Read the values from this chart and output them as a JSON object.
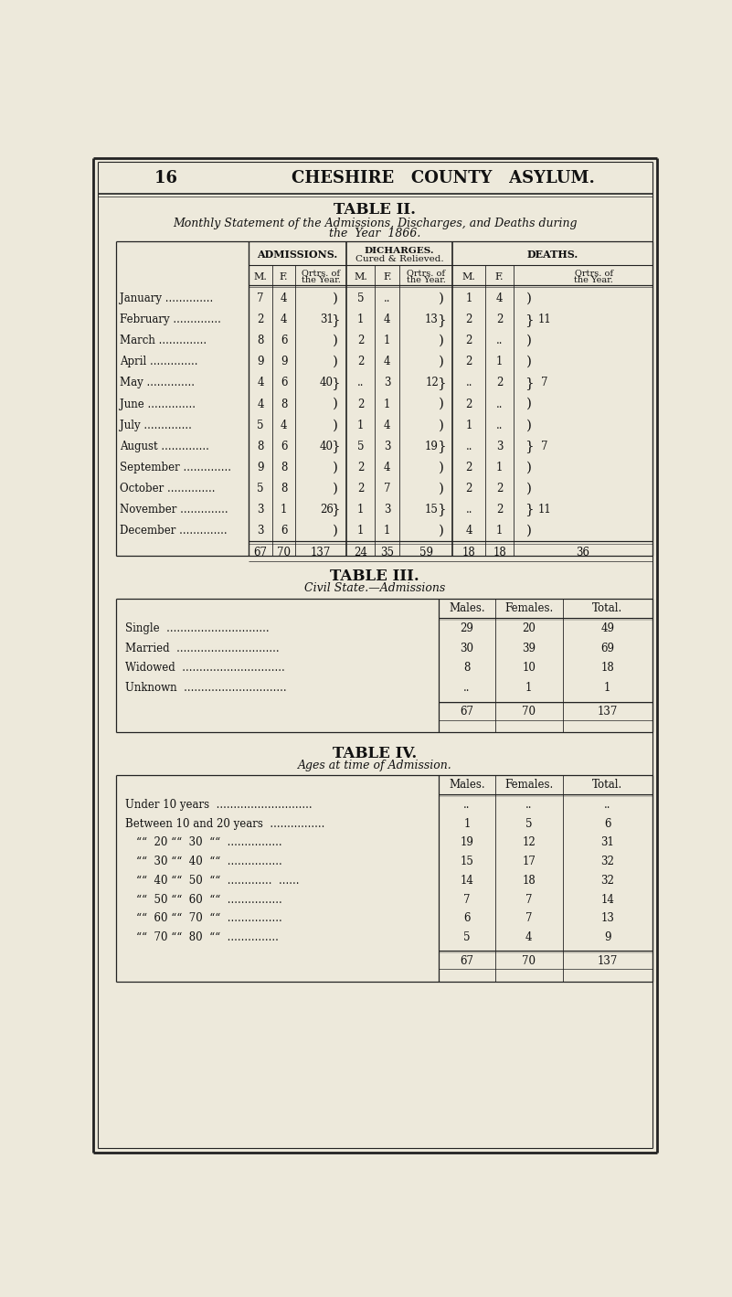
{
  "page_bg": "#ede9db",
  "text_color": "#111111",
  "months": [
    "January",
    "February",
    "March",
    "April",
    "May",
    "June",
    "July",
    "August",
    "September",
    "October",
    "November",
    "December"
  ],
  "adm_m": [
    "7",
    "2",
    "8",
    "9",
    "4",
    "4",
    "5",
    "8",
    "9",
    "5",
    "3",
    "3"
  ],
  "adm_f": [
    "4",
    "4",
    "6",
    "9",
    "6",
    "8",
    "4",
    "6",
    "8",
    "8",
    "1",
    "6"
  ],
  "adm_qtr_vals": [
    31,
    40,
    40,
    26
  ],
  "dis_m": [
    "5",
    "1",
    "2",
    "2",
    "..",
    "2",
    "1",
    "5",
    "2",
    "2",
    "1",
    "1"
  ],
  "dis_f": [
    "..",
    "4",
    "1",
    "4",
    "3",
    "1",
    "4",
    "3",
    "4",
    "7",
    "3",
    "1"
  ],
  "dis_qtr_vals": [
    13,
    12,
    19,
    15
  ],
  "dth_m": [
    "1",
    "2",
    "2",
    "2",
    "..",
    "2",
    "1",
    "..",
    "2",
    "2",
    "..",
    "4"
  ],
  "dth_f": [
    "4",
    "2",
    "..",
    "1",
    "2",
    "..",
    "..",
    "3",
    "1",
    "2",
    "2",
    "1"
  ],
  "dth_qtr_vals": [
    11,
    7,
    7,
    11
  ],
  "civil_rows": [
    "Single",
    "Married",
    "Widowed",
    "Unknown"
  ],
  "civil_m": [
    "29",
    "30",
    "8",
    ".."
  ],
  "civil_f": [
    "20",
    "39",
    "10",
    "1"
  ],
  "civil_total": [
    "49",
    "69",
    "18",
    "1"
  ],
  "age_m": [
    "..",
    "1",
    "19",
    "15",
    "14",
    "7",
    "6",
    "5"
  ],
  "age_f": [
    "..",
    "5",
    "12",
    "17",
    "18",
    "7",
    "7",
    "4"
  ],
  "age_total": [
    "..",
    "6",
    "31",
    "32",
    "32",
    "14",
    "13",
    "9"
  ]
}
